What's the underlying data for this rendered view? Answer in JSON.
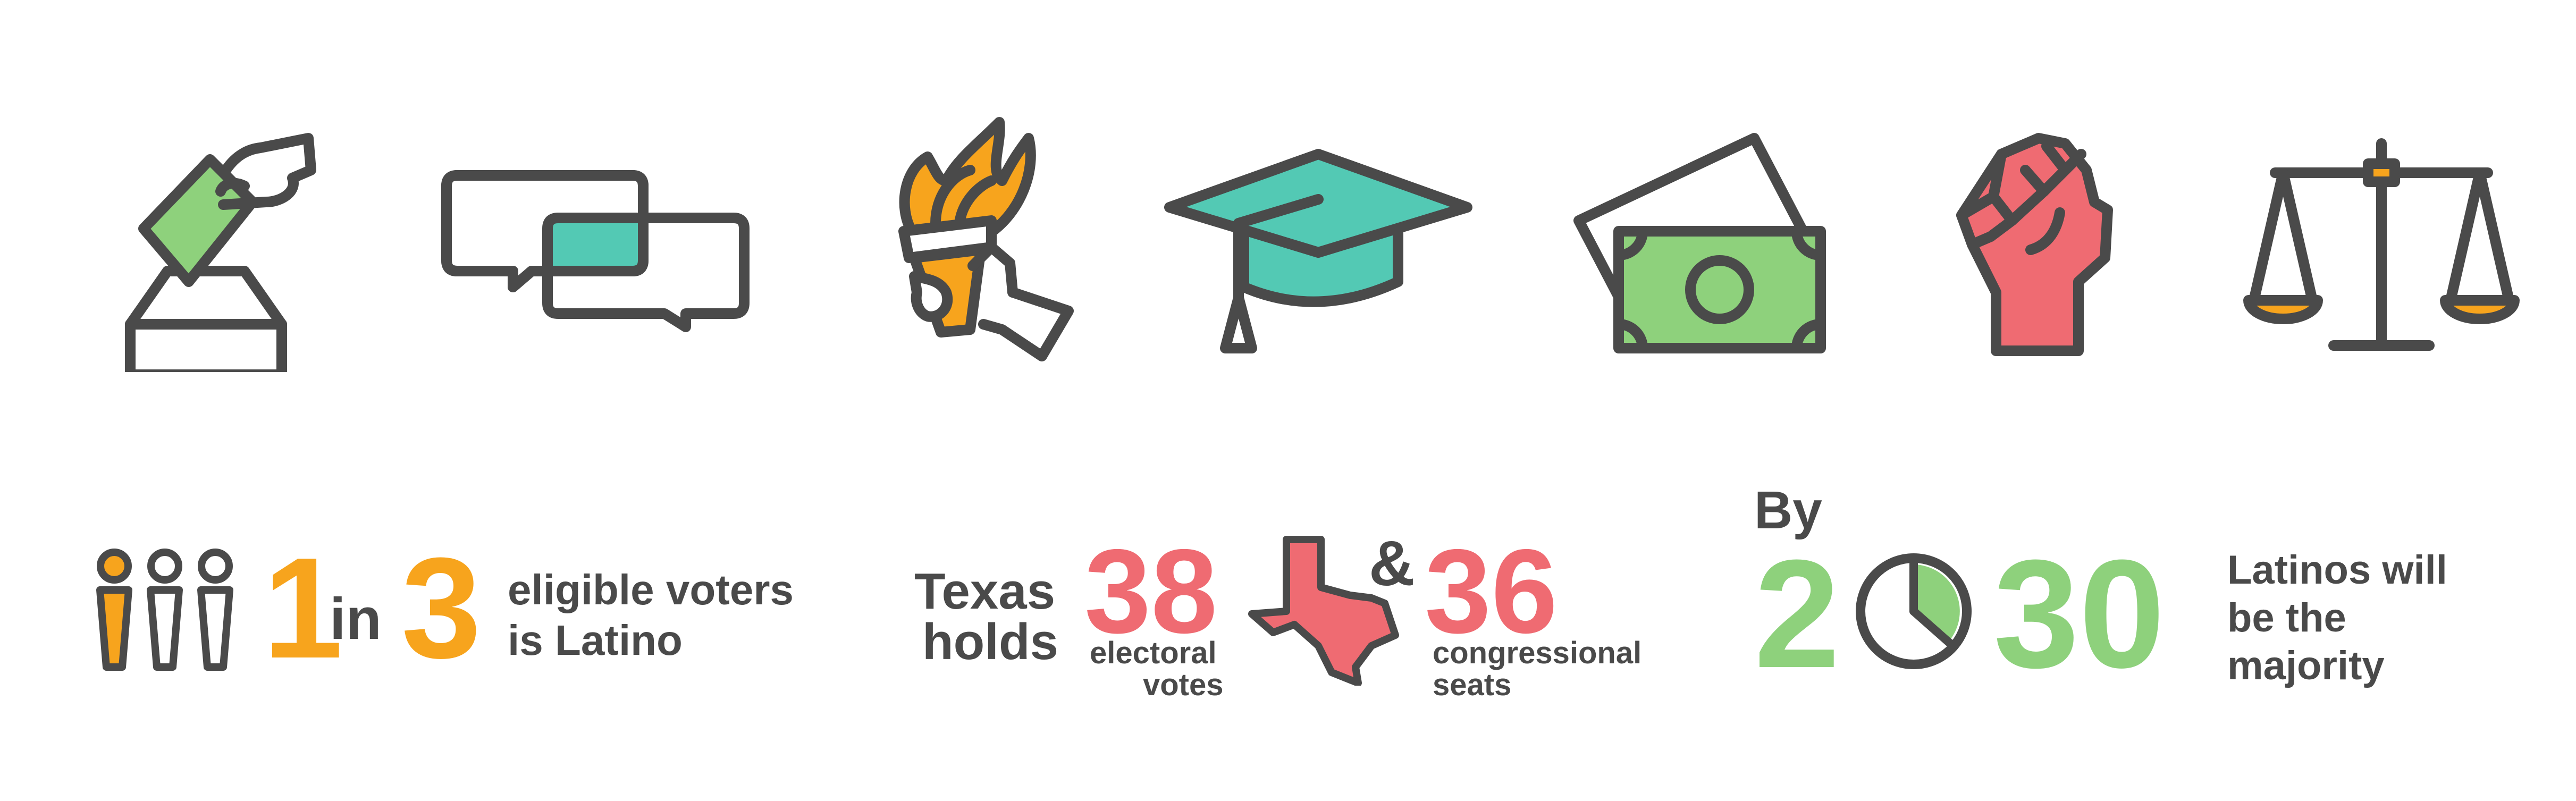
{
  "colors": {
    "outline": "#4a4a4a",
    "orange": "#f7a41d",
    "green": "#8ed17c",
    "teal": "#53c9b4",
    "pink": "#ef6b72"
  },
  "icons": [
    "ballot-box-icon",
    "speech-bubbles-icon",
    "torch-icon",
    "graduation-cap-icon",
    "money-icon",
    "raised-fist-icon",
    "scales-icon"
  ],
  "stat1": {
    "num_a": "1",
    "word_in": "in",
    "num_b": "3",
    "line1": "eligible voters",
    "line2": "is Latino"
  },
  "stat2": {
    "word1": "Texas",
    "word2": "holds",
    "num_a": "38",
    "label_a1": "electoral",
    "label_a2": "votes",
    "amp": "&",
    "num_b": "36",
    "label_b1": "congressional",
    "label_b2": "seats"
  },
  "stat3": {
    "by": "By",
    "digit1": "2",
    "digits_rest": "30",
    "line1": "Latinos will",
    "line2": "be the",
    "line3": "majority"
  }
}
